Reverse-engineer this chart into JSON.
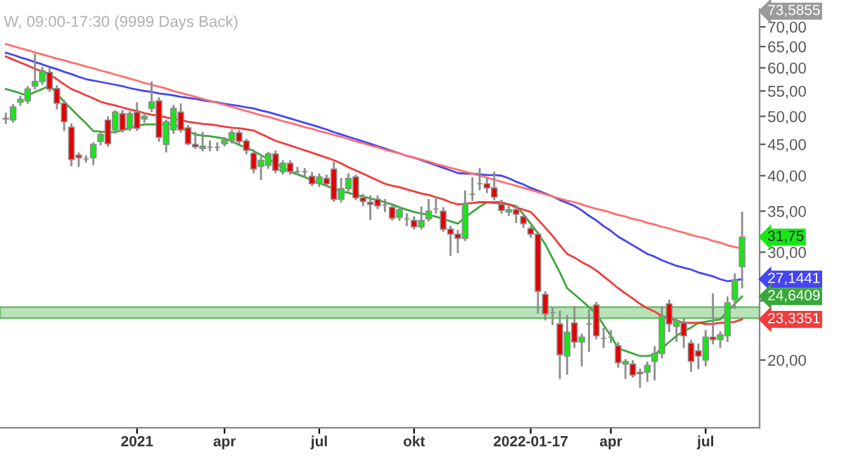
{
  "chart_data": {
    "type": "candlestick",
    "title": "W, 09:00-17:30 (9999 Days Back)",
    "categories": [
      null,
      null,
      null,
      null,
      null,
      null,
      null,
      null,
      null,
      null,
      null,
      null,
      null,
      null,
      null,
      null,
      null,
      null,
      "2021",
      null,
      null,
      null,
      null,
      null,
      null,
      null,
      null,
      null,
      null,
      null,
      "apr",
      null,
      null,
      null,
      null,
      null,
      null,
      null,
      null,
      null,
      null,
      null,
      null,
      "jul",
      null,
      null,
      null,
      null,
      null,
      null,
      null,
      null,
      null,
      null,
      null,
      null,
      "okt",
      null,
      null,
      null,
      null,
      null,
      null,
      null,
      null,
      null,
      null,
      null,
      null,
      null,
      null,
      null,
      "2022-01-17",
      null,
      null,
      null,
      null,
      null,
      null,
      null,
      null,
      null,
      null,
      "apr",
      null,
      null,
      null,
      null,
      null,
      null,
      null,
      null,
      null,
      null,
      null,
      null,
      "jul",
      null,
      null,
      null,
      null,
      null
    ],
    "ohlc": [
      [
        49.6,
        50.5,
        48.8,
        49.5
      ],
      [
        49.3,
        52.2,
        49.0,
        51.8
      ],
      [
        52.7,
        53.8,
        52.2,
        53.3
      ],
      [
        53.0,
        55.8,
        52.6,
        55.4
      ],
      [
        56.0,
        63.0,
        55.5,
        57.0
      ],
      [
        57.0,
        60.0,
        56.5,
        59.3
      ],
      [
        59.0,
        59.8,
        55.0,
        55.4
      ],
      [
        55.5,
        56.0,
        51.5,
        52.5
      ],
      [
        52.5,
        53.0,
        47.5,
        49.0
      ],
      [
        48.0,
        48.5,
        41.6,
        42.5
      ],
      [
        43.2,
        43.5,
        41.5,
        42.8
      ],
      [
        42.6,
        43.0,
        42.2,
        42.6
      ],
      [
        42.8,
        45.2,
        41.8,
        45.0
      ],
      [
        45.5,
        47.0,
        45.0,
        46.7
      ],
      [
        49.3,
        49.8,
        44.8,
        45.1
      ],
      [
        47.5,
        51.0,
        47.0,
        50.8
      ],
      [
        50.5,
        51.0,
        47.2,
        47.5
      ],
      [
        47.8,
        50.8,
        47.5,
        50.5
      ],
      [
        50.8,
        52.5,
        47.5,
        47.8
      ],
      [
        49.5,
        50.5,
        49.0,
        50.0
      ],
      [
        51.5,
        56.8,
        51.0,
        52.8
      ],
      [
        53.0,
        53.5,
        45.6,
        46.2
      ],
      [
        45.0,
        49.2,
        43.8,
        49.0
      ],
      [
        47.5,
        52.0,
        47.0,
        51.5
      ],
      [
        50.8,
        52.3,
        47.2,
        47.5
      ],
      [
        47.9,
        48.2,
        45.0,
        45.1
      ],
      [
        45.0,
        47.0,
        44.4,
        44.6
      ],
      [
        44.3,
        47.0,
        44.0,
        44.7
      ],
      [
        44.5,
        45.5,
        44.0,
        44.5
      ],
      [
        44.5,
        45.2,
        44.0,
        44.5
      ],
      [
        45.1,
        46.0,
        44.8,
        45.7
      ],
      [
        45.7,
        47.3,
        45.3,
        47.0
      ],
      [
        47.0,
        47.3,
        45.2,
        45.5
      ],
      [
        45.6,
        45.8,
        43.5,
        44.0
      ],
      [
        43.5,
        44.0,
        40.5,
        41.0
      ],
      [
        41.4,
        42.8,
        39.5,
        42.4
      ],
      [
        41.6,
        43.6,
        41.2,
        43.4
      ],
      [
        43.4,
        43.8,
        40.5,
        40.8
      ],
      [
        40.6,
        42.2,
        40.3,
        41.9
      ],
      [
        41.9,
        42.2,
        40.3,
        40.6
      ],
      [
        40.6,
        41.2,
        40.2,
        40.6
      ],
      [
        40.6,
        41.0,
        40.0,
        40.6
      ],
      [
        39.9,
        40.4,
        38.6,
        38.8
      ],
      [
        38.8,
        40.2,
        38.5,
        39.8
      ],
      [
        39.6,
        40.0,
        38.5,
        38.8
      ],
      [
        41.0,
        42.0,
        36.4,
        36.6
      ],
      [
        36.6,
        39.5,
        36.3,
        38.1
      ],
      [
        38.1,
        40.2,
        37.8,
        39.6
      ],
      [
        39.8,
        40.0,
        36.6,
        36.8
      ],
      [
        36.8,
        37.2,
        35.8,
        36.3
      ],
      [
        36.2,
        37.0,
        34.0,
        35.9
      ],
      [
        36.6,
        37.0,
        35.4,
        35.7
      ],
      [
        35.8,
        36.5,
        35.0,
        35.8
      ],
      [
        35.5,
        35.8,
        33.9,
        34.1
      ],
      [
        34.2,
        35.5,
        33.9,
        35.2
      ],
      [
        34.0,
        34.6,
        33.2,
        34.0
      ],
      [
        33.8,
        34.2,
        32.8,
        33.0
      ],
      [
        33.0,
        35.5,
        32.8,
        33.8
      ],
      [
        34.0,
        36.5,
        33.8,
        35.0
      ],
      [
        35.3,
        36.9,
        34.8,
        35.3
      ],
      [
        35.0,
        35.4,
        32.5,
        32.7
      ],
      [
        32.7,
        33.0,
        29.7,
        32.1
      ],
      [
        32.1,
        32.5,
        30.0,
        31.6
      ],
      [
        31.6,
        37.7,
        31.4,
        36.0
      ],
      [
        37.3,
        39.6,
        36.5,
        37.3
      ],
      [
        38.8,
        41.0,
        38.0,
        38.8
      ],
      [
        38.8,
        39.5,
        37.6,
        38.2
      ],
      [
        38.2,
        40.5,
        36.6,
        36.9
      ],
      [
        35.9,
        36.4,
        34.8,
        35.1
      ],
      [
        34.9,
        35.6,
        34.5,
        35.2
      ],
      [
        35.2,
        35.6,
        33.6,
        34.6
      ],
      [
        34.3,
        34.6,
        33.0,
        33.4
      ],
      [
        32.8,
        33.0,
        31.8,
        32.1
      ],
      [
        32.1,
        32.3,
        23.9,
        25.9
      ],
      [
        25.6,
        25.8,
        23.3,
        23.8
      ],
      [
        23.9,
        24.3,
        22.9,
        23.9
      ],
      [
        22.9,
        24.0,
        18.7,
        20.4
      ],
      [
        20.3,
        23.6,
        19.0,
        22.2
      ],
      [
        23.0,
        24.4,
        21.0,
        21.4
      ],
      [
        21.4,
        22.0,
        19.6,
        21.8
      ],
      [
        22.9,
        24.1,
        20.7,
        22.9
      ],
      [
        24.6,
        24.8,
        21.7,
        21.9
      ],
      [
        21.7,
        22.5,
        21.0,
        21.7
      ],
      [
        21.8,
        22.3,
        21.4,
        21.8
      ],
      [
        21.1,
        21.3,
        19.5,
        19.8
      ],
      [
        19.7,
        20.0,
        18.7,
        19.9
      ],
      [
        19.7,
        19.9,
        18.8,
        18.9
      ],
      [
        19.1,
        19.3,
        18.1,
        19.0
      ],
      [
        19.1,
        19.8,
        18.5,
        19.6
      ],
      [
        19.9,
        21.0,
        18.6,
        20.5
      ],
      [
        20.5,
        24.4,
        20.2,
        23.6
      ],
      [
        24.7,
        25.0,
        22.3,
        22.9
      ],
      [
        22.7,
        23.3,
        21.5,
        23.2
      ],
      [
        23.0,
        23.3,
        21.0,
        21.9
      ],
      [
        21.3,
        21.5,
        19.2,
        19.9
      ],
      [
        20.7,
        21.2,
        19.4,
        20.3
      ],
      [
        20.0,
        22.3,
        19.6,
        21.8
      ],
      [
        21.8,
        25.6,
        21.3,
        21.6
      ],
      [
        21.6,
        22.2,
        21.0,
        22.0
      ],
      [
        21.9,
        25.3,
        21.5,
        24.8
      ],
      [
        25.1,
        27.6,
        24.3,
        27.0
      ],
      [
        28.4,
        34.8,
        26.3,
        31.75
      ]
    ],
    "series": [
      {
        "type": "line",
        "color": "#4646f0",
        "values": [
          63.5,
          63.0,
          62.4,
          61.9,
          61.3,
          60.8,
          60.2,
          59.7,
          59.1,
          58.6,
          58.0,
          57.5,
          57.2,
          56.9,
          56.6,
          56.3,
          56.0,
          55.6,
          55.3,
          55.0,
          54.8,
          54.5,
          54.3,
          54.1,
          53.8,
          53.6,
          53.4,
          53.1,
          52.9,
          52.7,
          52.4,
          52.2,
          52.0,
          51.7,
          51.5,
          51.1,
          50.8,
          50.4,
          50.0,
          49.6,
          49.2,
          48.8,
          48.4,
          48.0,
          47.6,
          47.1,
          46.7,
          46.3,
          45.9,
          45.5,
          45.1,
          44.7,
          44.3,
          43.9,
          43.5,
          43.1,
          42.8,
          42.4,
          42.0,
          41.6,
          41.2,
          40.8,
          40.4,
          40.3,
          40.3,
          40.2,
          40.1,
          40.1,
          40.0,
          39.6,
          39.1,
          38.7,
          38.2,
          37.8,
          37.4,
          37.0,
          36.5,
          36.1,
          35.7,
          35.1,
          34.4,
          33.8,
          33.1,
          32.5,
          31.8,
          31.3,
          30.8,
          30.3,
          29.8,
          29.5,
          29.1,
          28.8,
          28.5,
          28.3,
          28.1,
          27.8,
          27.6,
          27.4,
          27.1,
          26.9,
          27.0,
          27.1
        ]
      },
      {
        "type": "line",
        "color": "#3aa83a",
        "values": [
          55.4,
          55.0,
          54.5,
          54.1,
          54.8,
          55.4,
          56.1,
          54.5,
          52.8,
          51.4,
          50.0,
          48.7,
          47.3,
          47.2,
          47.1,
          47.1,
          47.5,
          47.8,
          48.2,
          48.5,
          48.5,
          48.5,
          48.5,
          48.5,
          47.9,
          47.3,
          46.7,
          46.5,
          46.4,
          46.2,
          46.0,
          45.5,
          44.9,
          44.4,
          43.9,
          43.2,
          42.6,
          41.9,
          41.3,
          40.6,
          40.2,
          39.8,
          39.3,
          38.9,
          38.5,
          38.1,
          37.7,
          37.5,
          37.2,
          37.0,
          36.7,
          36.5,
          36.2,
          35.9,
          35.5,
          35.2,
          34.9,
          34.7,
          34.5,
          34.3,
          34.0,
          33.7,
          33.4,
          34.2,
          34.9,
          35.6,
          36.2,
          36.1,
          36.0,
          35.9,
          35.7,
          34.6,
          33.4,
          32.2,
          30.9,
          29.3,
          27.8,
          26.2,
          25.6,
          25.0,
          24.4,
          23.8,
          22.8,
          21.9,
          20.9,
          20.7,
          20.5,
          20.3,
          20.3,
          20.4,
          20.9,
          21.4,
          21.9,
          22.3,
          22.6,
          23.0,
          23.1,
          23.2,
          23.3,
          24.0,
          24.7,
          25.4
        ]
      },
      {
        "type": "line",
        "color": "#f03c3c",
        "values": [
          62.6,
          61.9,
          61.2,
          60.5,
          59.8,
          59.2,
          58.5,
          57.5,
          56.4,
          55.4,
          54.8,
          54.1,
          53.5,
          52.8,
          52.4,
          52.1,
          51.7,
          51.3,
          51.0,
          50.6,
          50.3,
          50.1,
          49.8,
          49.5,
          49.3,
          49.0,
          48.8,
          48.6,
          48.5,
          48.3,
          48.1,
          47.9,
          47.8,
          47.6,
          47.4,
          46.8,
          46.2,
          45.6,
          45.2,
          44.8,
          44.4,
          44.0,
          43.6,
          43.2,
          42.8,
          42.4,
          41.9,
          41.3,
          40.8,
          40.3,
          39.8,
          39.3,
          38.8,
          38.5,
          38.3,
          38.0,
          37.7,
          37.4,
          37.2,
          36.9,
          36.6,
          36.2,
          35.9,
          36.0,
          36.1,
          36.2,
          36.2,
          36.2,
          36.2,
          35.9,
          35.5,
          35.2,
          34.9,
          33.9,
          32.9,
          31.9,
          30.8,
          29.8,
          29.4,
          28.9,
          28.5,
          28.0,
          27.4,
          26.8,
          26.2,
          25.7,
          25.2,
          24.7,
          24.3,
          24.0,
          23.6,
          23.4,
          23.2,
          23.0,
          23.0,
          23.0,
          22.9,
          22.9,
          23.0,
          23.0,
          23.1,
          23.3
        ]
      },
      {
        "type": "line",
        "color": "#ff6f6f",
        "values": [
          65.6,
          65.1,
          64.6,
          64.1,
          63.6,
          63.1,
          62.6,
          62.1,
          61.7,
          61.2,
          60.8,
          60.3,
          59.9,
          59.4,
          59.0,
          58.5,
          58.1,
          57.6,
          57.2,
          56.7,
          56.3,
          55.9,
          55.5,
          55.0,
          54.6,
          54.2,
          53.8,
          53.4,
          53.0,
          52.6,
          52.2,
          51.8,
          51.4,
          51.0,
          50.6,
          50.2,
          49.9,
          49.5,
          49.1,
          48.8,
          48.4,
          48.0,
          47.7,
          47.3,
          47.0,
          46.6,
          46.3,
          45.9,
          45.5,
          45.2,
          44.8,
          44.5,
          44.1,
          43.8,
          43.5,
          43.1,
          42.8,
          42.5,
          42.2,
          41.8,
          41.5,
          41.2,
          40.9,
          40.6,
          40.3,
          40.0,
          39.7,
          39.4,
          39.1,
          38.8,
          38.5,
          38.2,
          37.9,
          37.6,
          37.3,
          37.0,
          36.7,
          36.4,
          36.2,
          35.9,
          35.6,
          35.3,
          35.1,
          34.8,
          34.5,
          34.3,
          34.0,
          33.8,
          33.5,
          33.3,
          33.0,
          32.8,
          32.5,
          32.3,
          32.0,
          31.8,
          31.6,
          31.3,
          31.1,
          30.8,
          30.6,
          30.4
        ]
      }
    ],
    "log": "y",
    "ylim": [
      15.5,
      74.8
    ],
    "yticks": [
      {
        "value": 20,
        "label": "20,00"
      },
      {
        "value": 25,
        "label": null
      },
      {
        "value": 30,
        "label": "30,00"
      },
      {
        "value": 35,
        "label": "35,00"
      },
      {
        "value": 40,
        "label": "40,00"
      },
      {
        "value": 45,
        "label": "45,00"
      },
      {
        "value": 50,
        "label": "50,00"
      },
      {
        "value": 55,
        "label": "55,00"
      },
      {
        "value": 60,
        "label": "60,00"
      },
      {
        "value": 65,
        "label": "65,00"
      },
      {
        "value": 70,
        "label": "70,00"
      }
    ],
    "bands": [
      {
        "axis": "y",
        "from": 23.4,
        "to": 24.4,
        "color": "#a8dca8"
      }
    ],
    "annotations": [
      "73,5855",
      "31,75",
      "27,1441",
      "24,6409",
      "23,3351"
    ],
    "grid": false
  }
}
